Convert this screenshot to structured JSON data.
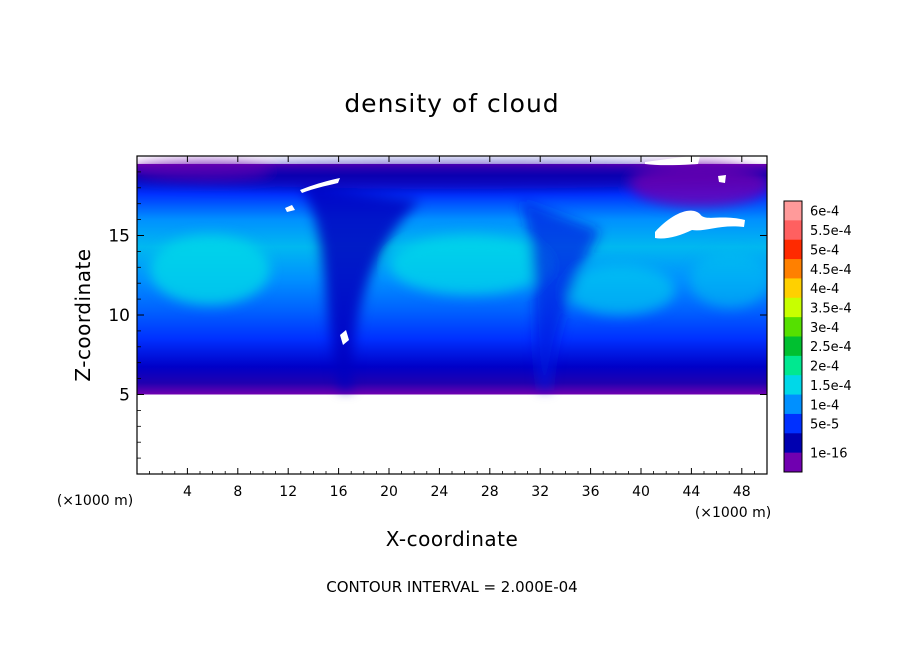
{
  "chart_data": {
    "type": "heatmap",
    "title": "density of cloud",
    "xlabel": "X-coordinate",
    "ylabel": "Z-coordinate",
    "x_unit": "(×1000 m)",
    "y_unit": "(×1000 m)",
    "xlim": [
      0,
      50
    ],
    "ylim": [
      0,
      20
    ],
    "x_ticks": [
      "4",
      "8",
      "12",
      "16",
      "20",
      "24",
      "28",
      "32",
      "36",
      "40",
      "44",
      "48"
    ],
    "y_ticks": [
      "5",
      "10",
      "15"
    ],
    "cloud_base": 5,
    "cloud_top": 19.5,
    "footer_note": "CONTOUR INTERVAL = 2.000E-04",
    "colorbar": {
      "levels": [
        "6e-4",
        "5.5e-4",
        "5e-4",
        "4.5e-4",
        "4e-4",
        "3.5e-4",
        "3e-4",
        "2.5e-4",
        "2e-4",
        "1.5e-4",
        "1e-4",
        "5e-5",
        "1e-16"
      ],
      "colors": [
        "#ff9a9a",
        "#ff6060",
        "#ff2a00",
        "#ff8000",
        "#ffd000",
        "#c8ff00",
        "#55e000",
        "#00c030",
        "#00e890",
        "#00d8e8",
        "#0090ff",
        "#0030ff",
        "#0000b0",
        "#7000b0"
      ]
    }
  }
}
